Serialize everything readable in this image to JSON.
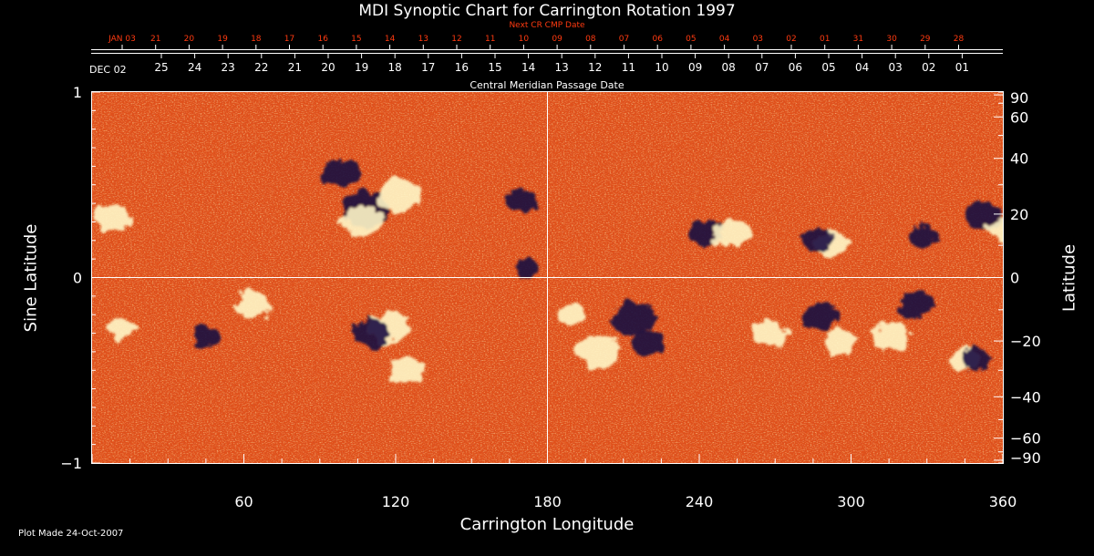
{
  "chart_data": {
    "type": "heatmap",
    "title": "MDI Synoptic Chart for Carrington Rotation 1997",
    "top_axis_label": "Next CR CMP Date",
    "top_ticks": [
      "JAN 03",
      "21",
      "20",
      "19",
      "18",
      "17",
      "16",
      "15",
      "14",
      "13",
      "12",
      "11",
      "10",
      "09",
      "08",
      "07",
      "06",
      "05",
      "04",
      "03",
      "02",
      "01",
      "31",
      "30",
      "29",
      "28"
    ],
    "mid_axis_first": "DEC 02",
    "mid_ticks": [
      "25",
      "24",
      "23",
      "22",
      "21",
      "20",
      "19",
      "18",
      "17",
      "16",
      "15",
      "14",
      "13",
      "12",
      "11",
      "10",
      "09",
      "08",
      "07",
      "06",
      "05",
      "04",
      "03",
      "02",
      "01"
    ],
    "mid_axis_label": "Central Meridian Passage Date",
    "xlabel": "Carrington Longitude",
    "xlim": [
      0,
      360
    ],
    "xticks": [
      60,
      120,
      180,
      240,
      300,
      360
    ],
    "ylabel_left": "Sine Latitude",
    "ylim": [
      -1,
      1
    ],
    "yticks_left": [
      "1",
      "0",
      "−1"
    ],
    "ylabel_right": "Latitude",
    "yticks_right": [
      "90",
      "60",
      "40",
      "20",
      "0",
      "−20",
      "−40",
      "−60",
      "−90"
    ],
    "crosshair": {
      "longitude": 180,
      "sine_latitude": 0
    },
    "colors": {
      "background_field": "#e0501a",
      "positive_polarity": "#fff7c8",
      "negative_polarity": "#1a0a40",
      "labels": "#ffffff",
      "next_cr_labels": "#ff3a10"
    },
    "active_regions": [
      {
        "lon": 108,
        "slat": 0.37,
        "polarity": "negative",
        "strength": 1.0
      },
      {
        "lon": 121,
        "slat": 0.44,
        "polarity": "positive",
        "strength": 0.9
      },
      {
        "lon": 107,
        "slat": 0.3,
        "polarity": "positive",
        "strength": 0.8
      },
      {
        "lon": 98,
        "slat": 0.56,
        "polarity": "negative",
        "strength": 0.7
      },
      {
        "lon": 170,
        "slat": 0.41,
        "polarity": "negative",
        "strength": 0.5
      },
      {
        "lon": 172,
        "slat": 0.05,
        "polarity": "negative",
        "strength": 0.3
      },
      {
        "lon": 242,
        "slat": 0.24,
        "polarity": "negative",
        "strength": 0.6
      },
      {
        "lon": 253,
        "slat": 0.24,
        "polarity": "positive",
        "strength": 0.7
      },
      {
        "lon": 292,
        "slat": 0.18,
        "polarity": "positive",
        "strength": 0.6
      },
      {
        "lon": 287,
        "slat": 0.2,
        "polarity": "negative",
        "strength": 0.5
      },
      {
        "lon": 352,
        "slat": 0.33,
        "polarity": "negative",
        "strength": 0.7
      },
      {
        "lon": 360,
        "slat": 0.26,
        "polarity": "positive",
        "strength": 0.5
      },
      {
        "lon": 328,
        "slat": 0.22,
        "polarity": "negative",
        "strength": 0.4
      },
      {
        "lon": 8,
        "slat": 0.32,
        "polarity": "positive",
        "strength": 0.6
      },
      {
        "lon": 64,
        "slat": -0.15,
        "polarity": "positive",
        "strength": 0.6
      },
      {
        "lon": 118,
        "slat": -0.27,
        "polarity": "positive",
        "strength": 0.8
      },
      {
        "lon": 110,
        "slat": -0.3,
        "polarity": "negative",
        "strength": 0.7
      },
      {
        "lon": 125,
        "slat": -0.49,
        "polarity": "positive",
        "strength": 0.6
      },
      {
        "lon": 190,
        "slat": -0.2,
        "polarity": "positive",
        "strength": 0.5
      },
      {
        "lon": 200,
        "slat": -0.4,
        "polarity": "positive",
        "strength": 0.9
      },
      {
        "lon": 214,
        "slat": -0.22,
        "polarity": "negative",
        "strength": 0.9
      },
      {
        "lon": 220,
        "slat": -0.36,
        "polarity": "negative",
        "strength": 0.6
      },
      {
        "lon": 268,
        "slat": -0.3,
        "polarity": "positive",
        "strength": 0.6
      },
      {
        "lon": 295,
        "slat": -0.35,
        "polarity": "positive",
        "strength": 0.6
      },
      {
        "lon": 288,
        "slat": -0.21,
        "polarity": "negative",
        "strength": 0.6
      },
      {
        "lon": 316,
        "slat": -0.32,
        "polarity": "positive",
        "strength": 0.7
      },
      {
        "lon": 326,
        "slat": -0.15,
        "polarity": "negative",
        "strength": 0.6
      },
      {
        "lon": 345,
        "slat": -0.44,
        "polarity": "positive",
        "strength": 0.4
      },
      {
        "lon": 350,
        "slat": -0.44,
        "polarity": "negative",
        "strength": 0.4
      },
      {
        "lon": 46,
        "slat": -0.32,
        "polarity": "negative",
        "strength": 0.4
      },
      {
        "lon": 12,
        "slat": -0.28,
        "polarity": "positive",
        "strength": 0.4
      }
    ]
  },
  "footer": {
    "plot_made": "Plot Made 24-Oct-2007"
  }
}
